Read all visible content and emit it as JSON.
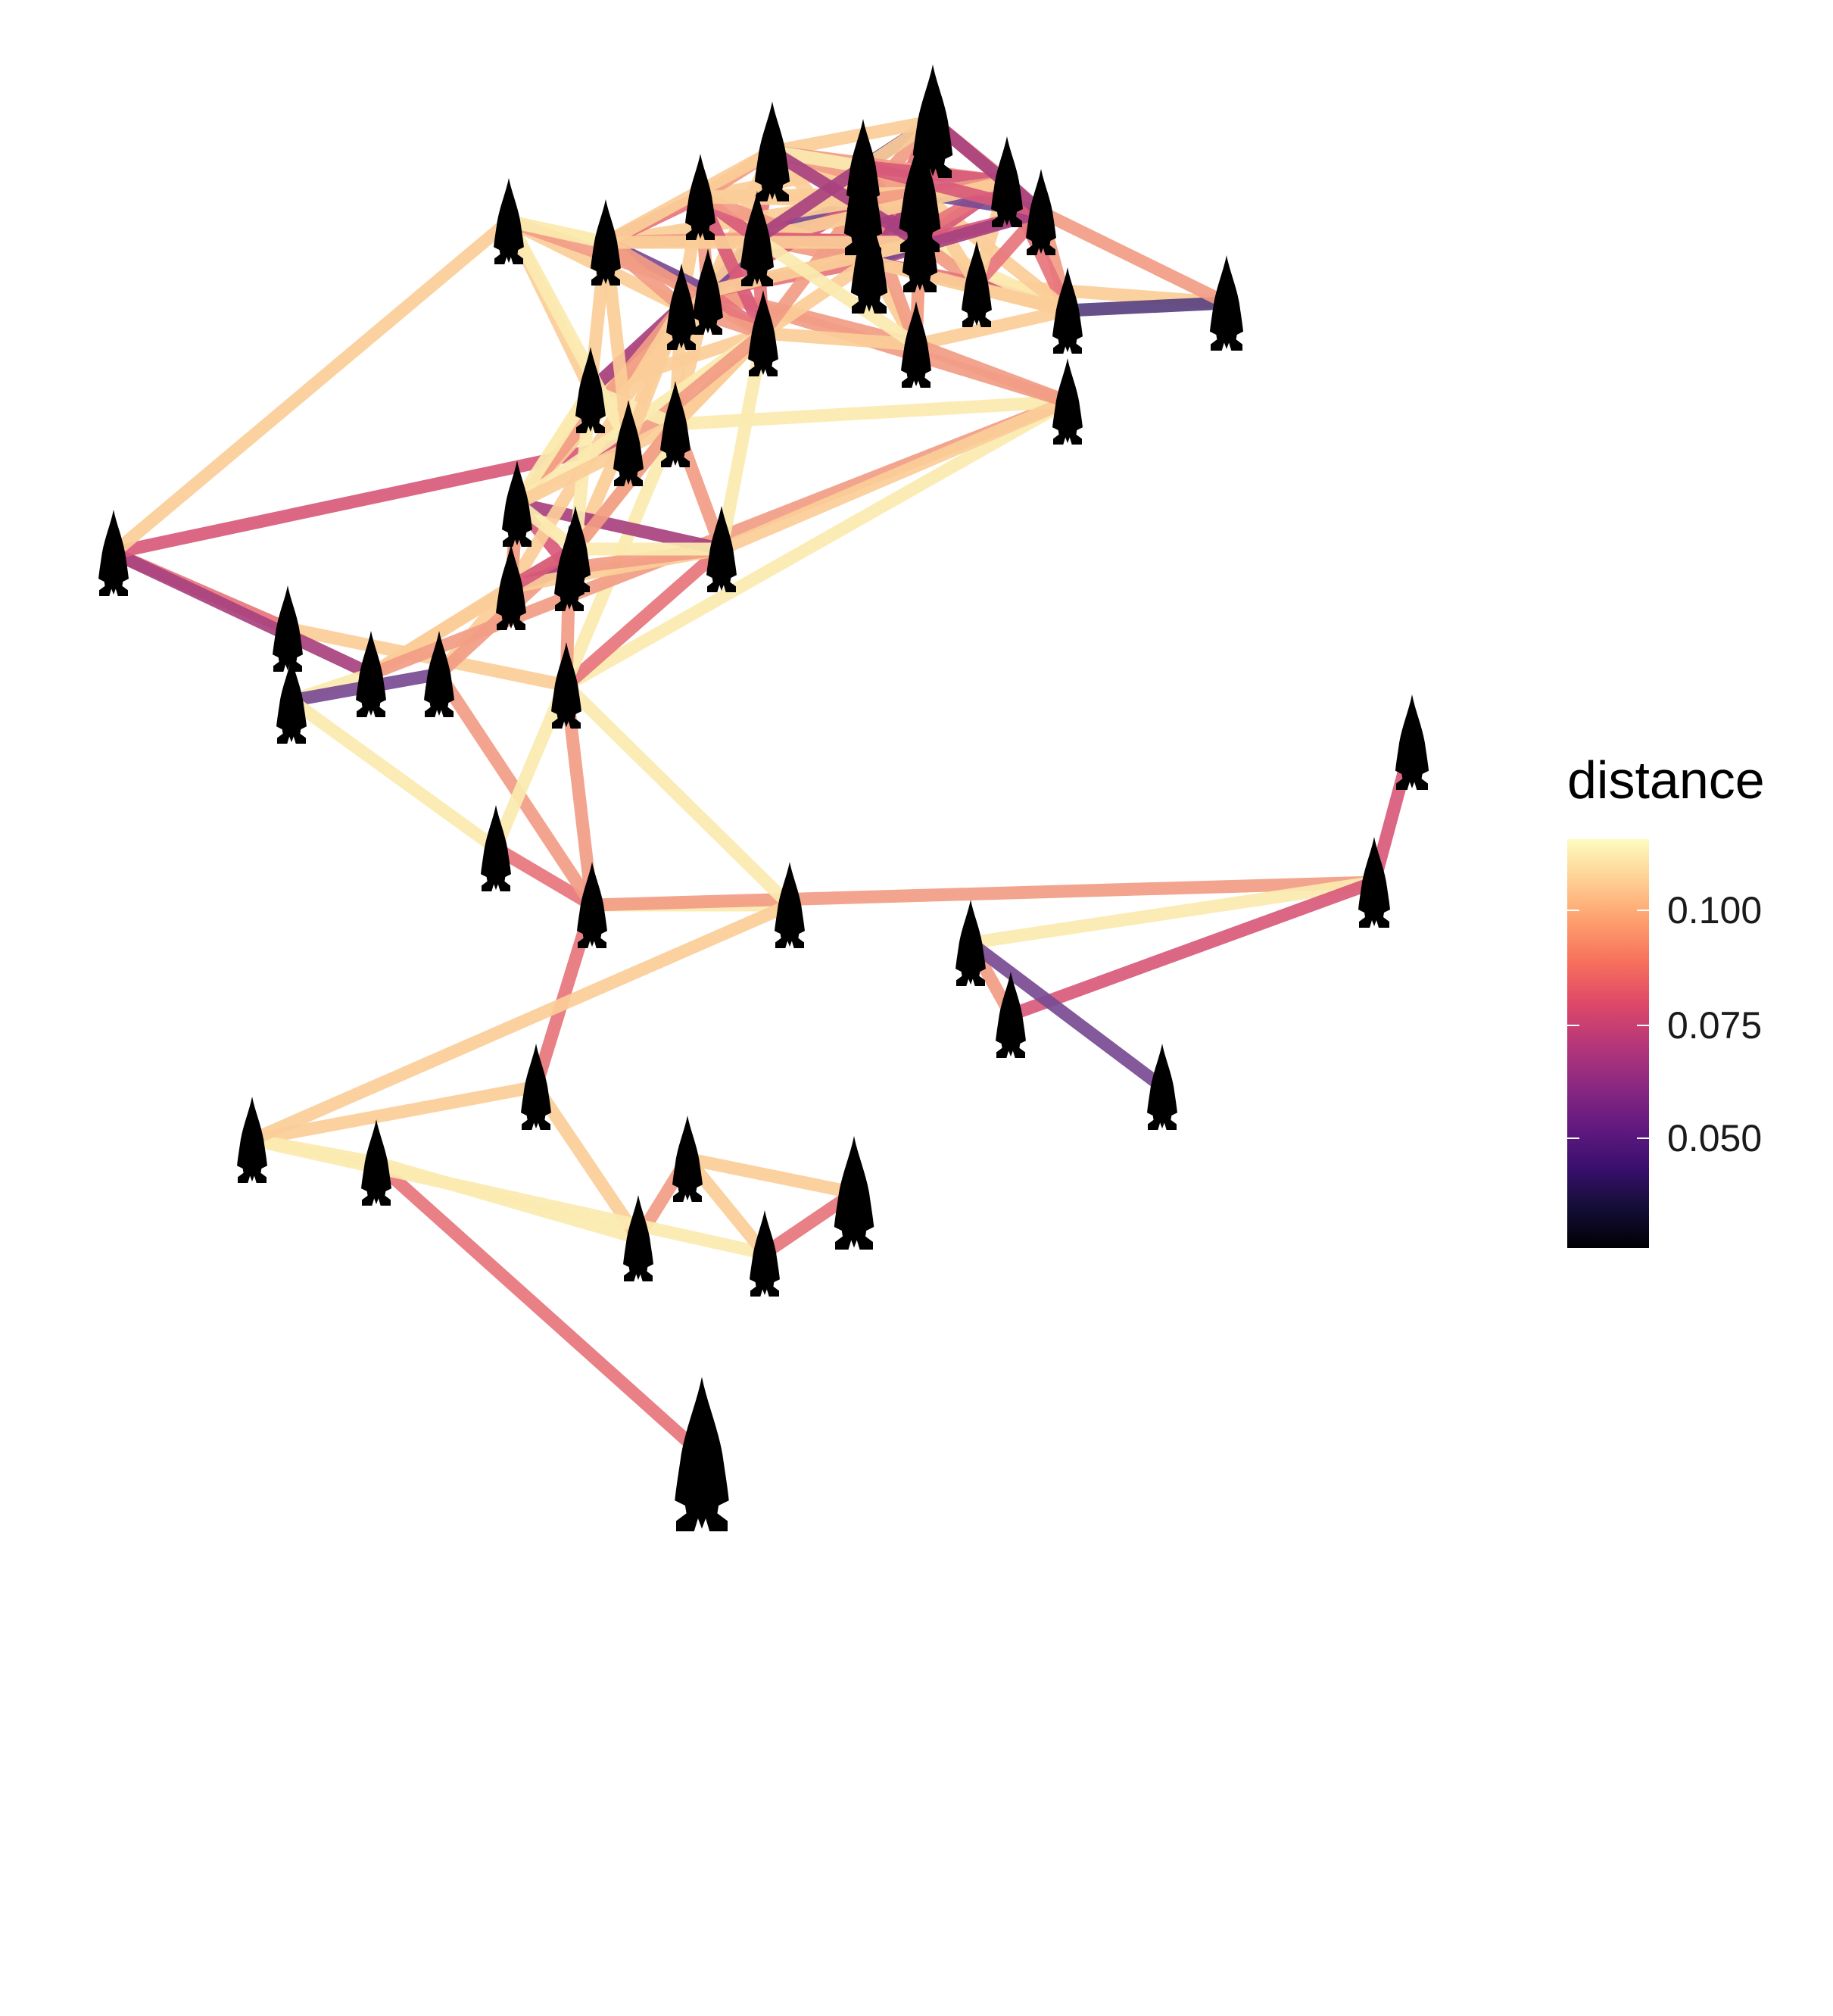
{
  "legend": {
    "title": "distance",
    "labels": [
      "0.100",
      "0.075",
      "0.050"
    ],
    "label_values": [
      0.1,
      0.075,
      0.05
    ],
    "range": [
      0.03,
      0.118
    ],
    "colormap": "magma"
  },
  "network": {
    "node_icon": "projectile-point-icon",
    "node_color": "#000000",
    "node_count": 60,
    "edge_count": 195,
    "edge_colors": {
      "pale": "#fbeab0",
      "light-orange": "#fbcd98",
      "salmon": "#f29c84",
      "coral": "#e7757c",
      "pink-red": "#d85a7a",
      "magenta": "#a8417f",
      "purple": "#7a4b94",
      "dark-purple": "#59417f"
    }
  }
}
